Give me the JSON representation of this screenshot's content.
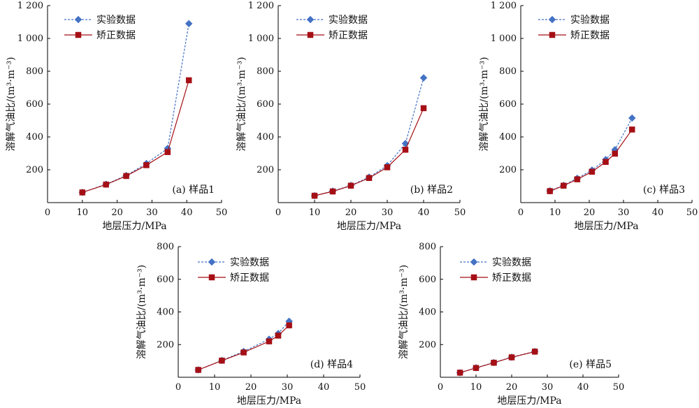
{
  "colors": {
    "experimental": "#4472C4",
    "corrected": "#A50F15",
    "axis": "#000000"
  },
  "legend": {
    "experimental": "实验数据",
    "corrected": "矫正数据"
  },
  "chart_data": [
    {
      "type": "line",
      "panel_label": "(a) 样品1",
      "xlabel": "地层压力/MPa",
      "ylabel": "溶解气油比/(m³·m⁻³)",
      "xlim": [
        0,
        50
      ],
      "ylim": [
        0,
        1200
      ],
      "xticks": [
        0,
        10,
        20,
        30,
        40,
        50
      ],
      "yticks": [
        200,
        400,
        600,
        800,
        1000,
        1200
      ],
      "ytick_labels": [
        "200",
        "400",
        "600",
        "800",
        "1 000",
        "1 200"
      ],
      "legend_position": "top-left",
      "series": [
        {
          "name": "实验数据",
          "marker": "diamond",
          "line": "dashed",
          "x": [
            10,
            16.8,
            22.6,
            28.4,
            34.5,
            40.6
          ],
          "y": [
            62,
            112,
            165,
            238,
            330,
            1090
          ]
        },
        {
          "name": "矫正数据",
          "marker": "square",
          "line": "solid",
          "x": [
            10,
            16.8,
            22.6,
            28.4,
            34.5,
            40.6
          ],
          "y": [
            62,
            110,
            162,
            228,
            308,
            745
          ]
        }
      ]
    },
    {
      "type": "line",
      "panel_label": "(b) 样品2",
      "xlabel": "地层压力/MPa",
      "ylabel": "溶解气油比/(m³·m⁻³)",
      "xlim": [
        0,
        50
      ],
      "ylim": [
        0,
        1200
      ],
      "xticks": [
        0,
        10,
        20,
        30,
        40,
        50
      ],
      "yticks": [
        200,
        400,
        600,
        800,
        1000,
        1200
      ],
      "ytick_labels": [
        "200",
        "400",
        "600",
        "800",
        "1 000",
        "1 200"
      ],
      "legend_position": "top-left",
      "series": [
        {
          "name": "实验数据",
          "marker": "diamond",
          "line": "dashed",
          "x": [
            10,
            15,
            20,
            25,
            30,
            35,
            40
          ],
          "y": [
            42,
            70,
            105,
            155,
            225,
            360,
            760
          ]
        },
        {
          "name": "矫正数据",
          "marker": "square",
          "line": "solid",
          "x": [
            10,
            15,
            20,
            25,
            30,
            35,
            40
          ],
          "y": [
            42,
            68,
            103,
            150,
            215,
            322,
            575
          ]
        }
      ]
    },
    {
      "type": "line",
      "panel_label": "(c) 样品3",
      "xlabel": "地层压力/MPa",
      "ylabel": "溶解气油比/(m³·m⁻³)",
      "xlim": [
        0,
        50
      ],
      "ylim": [
        0,
        1200
      ],
      "xticks": [
        0,
        10,
        20,
        30,
        40,
        50
      ],
      "yticks": [
        200,
        400,
        600,
        800,
        1000,
        1200
      ],
      "ytick_labels": [
        "200",
        "400",
        "600",
        "800",
        "1 000",
        "1 200"
      ],
      "legend_position": "top-left",
      "series": [
        {
          "name": "实验数据",
          "marker": "diamond",
          "line": "dashed",
          "x": [
            8.5,
            12.5,
            16.5,
            20.8,
            24.8,
            27.5,
            32.5
          ],
          "y": [
            72,
            105,
            148,
            198,
            262,
            322,
            515
          ]
        },
        {
          "name": "矫正数据",
          "marker": "square",
          "line": "solid",
          "x": [
            8.5,
            12.5,
            16.5,
            20.8,
            24.8,
            27.5,
            32.5
          ],
          "y": [
            70,
            103,
            142,
            188,
            248,
            298,
            445
          ]
        }
      ]
    },
    {
      "type": "line",
      "panel_label": "(d) 样品4",
      "xlabel": "地层压力/MPa",
      "ylabel": "溶解气油比/(m³·m⁻³)",
      "xlim": [
        0,
        50
      ],
      "ylim": [
        0,
        800
      ],
      "xticks": [
        0,
        10,
        20,
        30,
        40,
        50
      ],
      "yticks": [
        200,
        400,
        600,
        800
      ],
      "ytick_labels": [
        "200",
        "400",
        "600",
        "800"
      ],
      "legend_position": "top-left",
      "series": [
        {
          "name": "实验数据",
          "marker": "diamond",
          "line": "dashed",
          "x": [
            5.5,
            12,
            18,
            25,
            27.5,
            30.5
          ],
          "y": [
            45,
            103,
            158,
            233,
            268,
            343
          ]
        },
        {
          "name": "矫正数据",
          "marker": "square",
          "line": "solid",
          "x": [
            5.5,
            12,
            18,
            25,
            27.5,
            30.5
          ],
          "y": [
            45,
            102,
            152,
            220,
            255,
            318
          ]
        }
      ]
    },
    {
      "type": "line",
      "panel_label": "(e) 样品5",
      "xlabel": "地层压力/MPa",
      "ylabel": "溶解气油比/(m³·m⁻³)",
      "xlim": [
        0,
        50
      ],
      "ylim": [
        0,
        800
      ],
      "xticks": [
        0,
        10,
        20,
        30,
        40,
        50
      ],
      "yticks": [
        200,
        400,
        600,
        800
      ],
      "ytick_labels": [
        "200",
        "400",
        "600",
        "800"
      ],
      "legend_position": "top-left",
      "series": [
        {
          "name": "实验数据",
          "marker": "diamond",
          "line": "dashed",
          "x": [
            5.5,
            10,
            15,
            20,
            26.5
          ],
          "y": [
            28,
            58,
            90,
            123,
            158
          ]
        },
        {
          "name": "矫正数据",
          "marker": "square",
          "line": "solid",
          "x": [
            5.5,
            10,
            15,
            20,
            26.5
          ],
          "y": [
            28,
            57,
            89,
            122,
            157
          ]
        }
      ]
    }
  ]
}
